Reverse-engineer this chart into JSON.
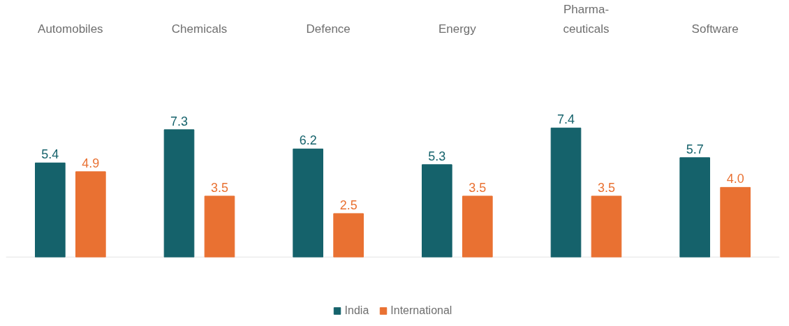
{
  "chart_data": {
    "type": "bar",
    "categories": [
      "Automobiles",
      "Chemicals",
      "Defence",
      "Energy",
      "Pharma-\nceuticals",
      "Software"
    ],
    "series": [
      {
        "name": "India",
        "color": "#15626b",
        "values": [
          5.4,
          7.3,
          6.2,
          5.3,
          7.4,
          5.7
        ],
        "value_labels": [
          "5.4",
          "7.3",
          "6.2",
          "5.3",
          "7.4",
          "5.7"
        ]
      },
      {
        "name": "International",
        "color": "#e97132",
        "values": [
          4.9,
          3.5,
          2.5,
          3.5,
          3.5,
          4.0
        ],
        "value_labels": [
          "4.9",
          "3.5",
          "2.5",
          "3.5",
          "3.5",
          "4.0"
        ]
      }
    ],
    "legend": "bottom",
    "tick_labels": "x"
  }
}
